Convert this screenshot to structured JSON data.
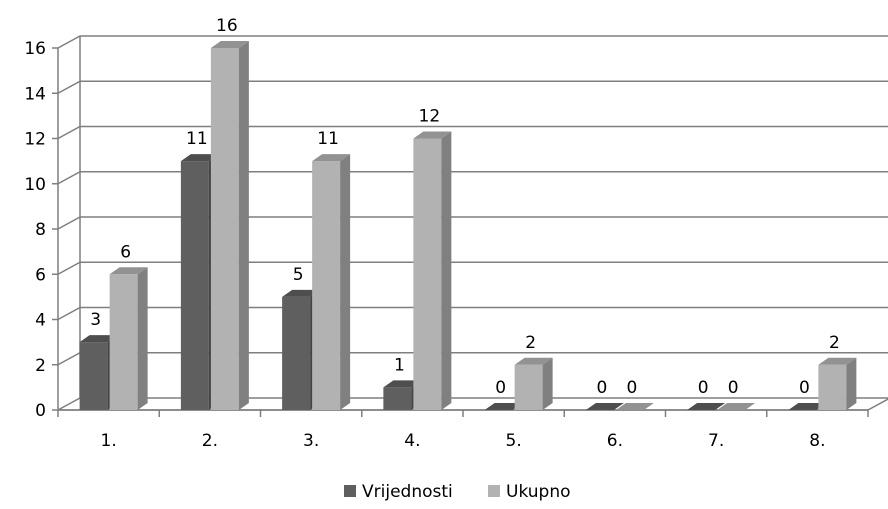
{
  "chart_data": {
    "type": "bar",
    "categories": [
      "1.",
      "2.",
      "3.",
      "4.",
      "5.",
      "6.",
      "7.",
      "8."
    ],
    "series": [
      {
        "name": "Vrijednosti",
        "values": [
          3,
          11,
          5,
          1,
          0,
          0,
          0,
          0
        ],
        "color": "#5f5f5f"
      },
      {
        "name": "Ukupno",
        "values": [
          6,
          16,
          11,
          12,
          2,
          0,
          0,
          2
        ],
        "color": "#b2b2b2"
      }
    ],
    "data_labels": [
      [
        "3",
        "11",
        "5",
        "1",
        "0",
        "0",
        "0",
        "0"
      ],
      [
        "6",
        "16",
        "11",
        "12",
        "2",
        "0",
        "0",
        "2"
      ]
    ],
    "y_ticks": [
      "0",
      "2",
      "4",
      "6",
      "8",
      "10",
      "12",
      "14",
      "16"
    ],
    "ylim": [
      0,
      16
    ],
    "grid": true,
    "legend_position": "bottom",
    "style": "3d-clustered-column"
  }
}
